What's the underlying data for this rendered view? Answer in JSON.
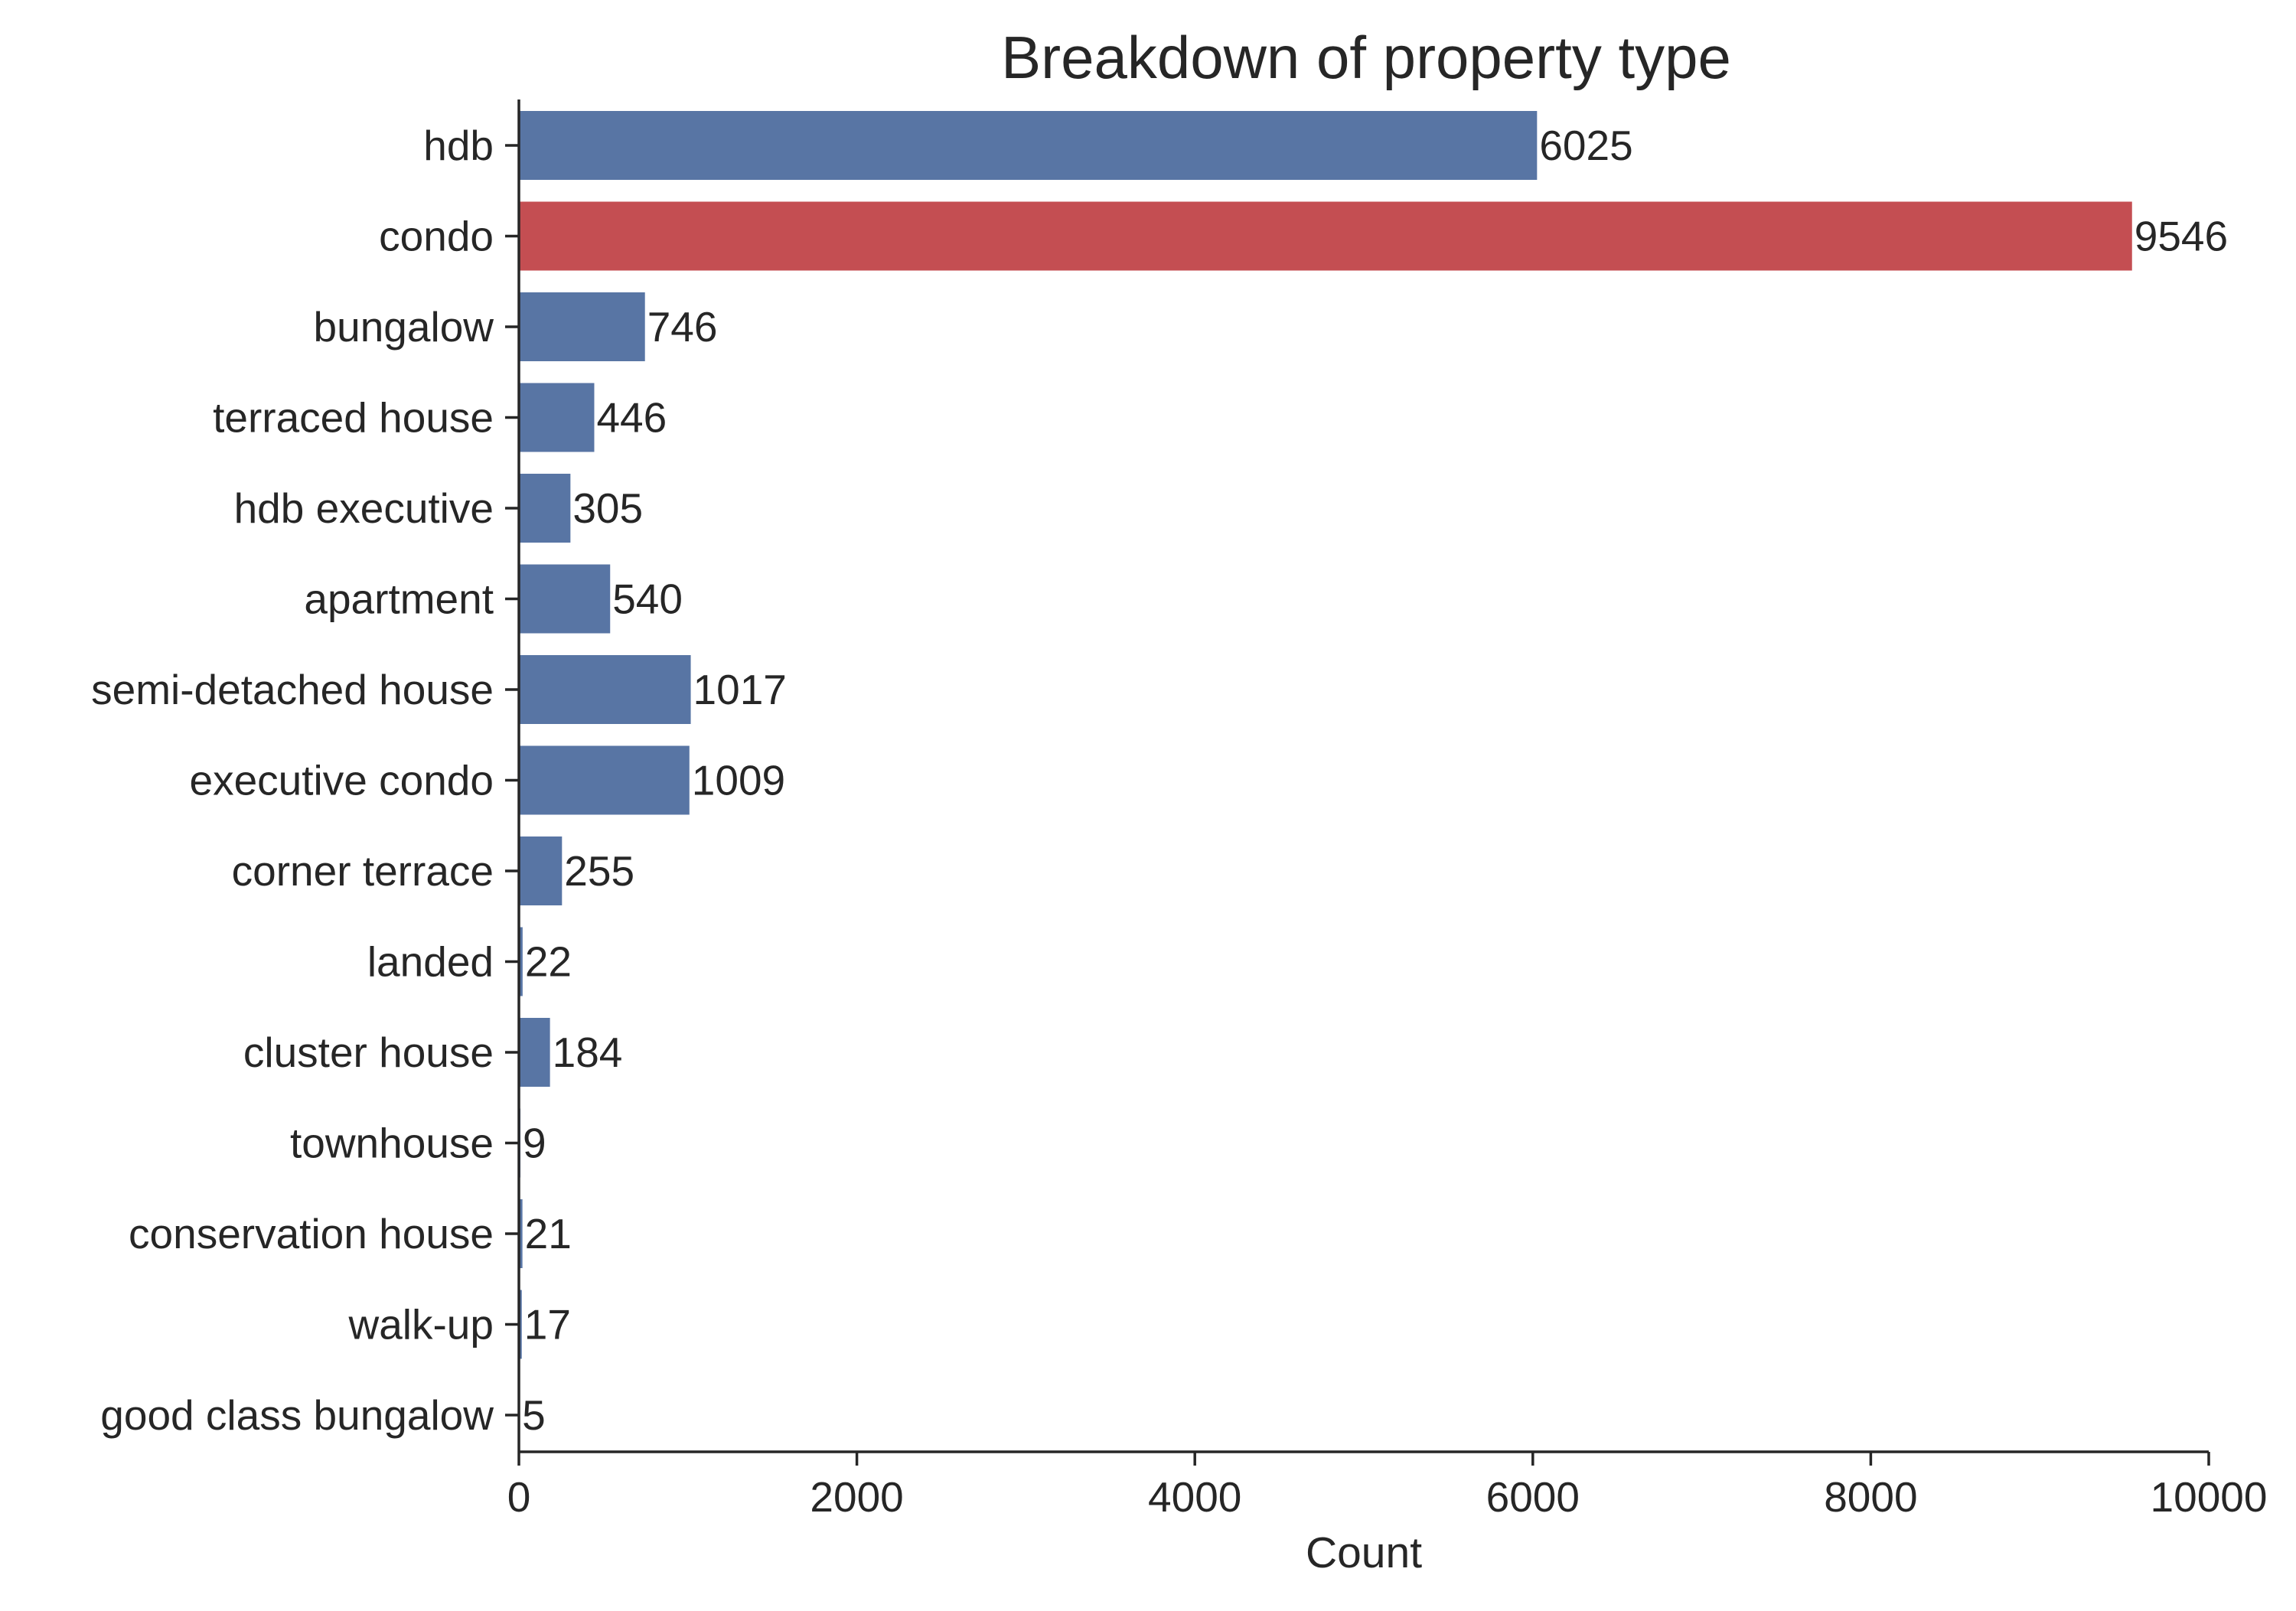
{
  "chart_data": {
    "type": "bar",
    "orientation": "horizontal",
    "title": "Breakdown of property type",
    "xlabel": "Count",
    "ylabel": "",
    "xlim": [
      0,
      10000
    ],
    "x_ticks": [
      0,
      2000,
      4000,
      6000,
      8000,
      10000
    ],
    "x_tick_labels": [
      "0",
      "2000",
      "4000",
      "6000",
      "8000",
      "10000"
    ],
    "grid": false,
    "legend": "none",
    "categories": [
      "hdb",
      "condo",
      "bungalow",
      "terraced house",
      "hdb executive",
      "apartment",
      "semi-detached house",
      "executive condo",
      "corner terrace",
      "landed",
      "cluster house",
      "townhouse",
      "conservation house",
      "walk-up",
      "good class bungalow"
    ],
    "values": [
      6025,
      9546,
      746,
      446,
      305,
      540,
      1017,
      1009,
      255,
      22,
      184,
      9,
      21,
      17,
      5
    ],
    "value_labels": [
      "6025",
      "9546",
      "746",
      "446",
      "305",
      "540",
      "1017",
      "1009",
      "255",
      "22",
      "184",
      "9",
      "21",
      "17",
      "5"
    ],
    "highlight_category": "condo",
    "colors": {
      "bar": "#5875a4",
      "highlight": "#c44e52",
      "axis": "#262626",
      "text": "#262626",
      "background": "#ffffff"
    }
  }
}
